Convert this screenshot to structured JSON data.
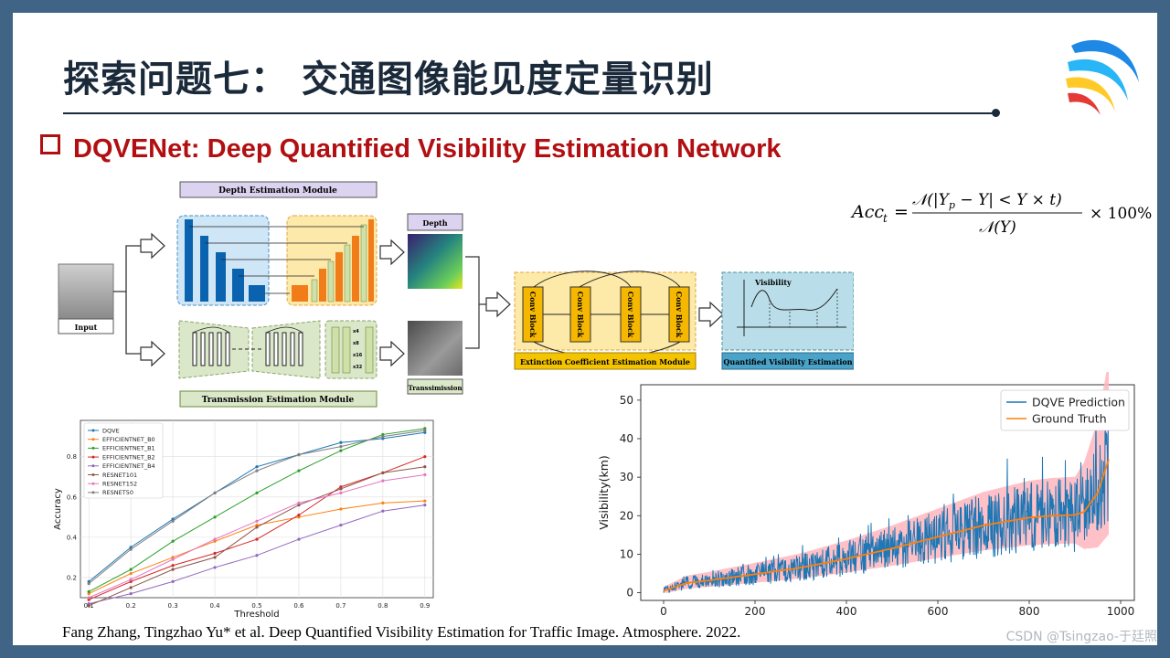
{
  "slide": {
    "title": "探索问题七：  交通图像能见度定量识别",
    "subtitle": "DQVENet: Deep Quantified Visibility Estimation Network",
    "citation": "Fang Zhang,  Tingzhao  Yu* et al. Deep Quantified Visibility Estimation for Traffic Image. Atmosphere.  2022.",
    "watermark": "CSDN @Tsingzao-于廷照"
  },
  "formula": {
    "lhs": "Acc",
    "lhs_sub": "t",
    "numerator": "𝒩(|Y",
    "numerator_sub": "p",
    "numerator_rest": " − Y| < Y × t)",
    "denominator": "𝒩(Y)",
    "suffix": "× 100%"
  },
  "diagram": {
    "depth_module": "Depth Estimation Module",
    "transmission_module": "Transmission Estimation Module",
    "extinction_module": "Extinction Coefficient Estimation Module",
    "quantified_module": "Quantified Visibility Estimation",
    "input_label": "Input",
    "depth_label": "Depth",
    "transmission_label": "Transsimission",
    "conv_block": "Conv Block",
    "visibility_label": "Visibility",
    "scale_labels": [
      "x4",
      "x8",
      "x16",
      "x32"
    ]
  },
  "colors": {
    "title": "#1b2a3a",
    "subtitle": "#b20f12",
    "frame": "#3f6485",
    "dqve_line": "#1f77b4",
    "truth_line": "#ff7f0e",
    "band": "#ffb6bd"
  },
  "chart_data": [
    {
      "type": "line",
      "xlabel": "Threshold",
      "ylabel": "Accuracy",
      "x": [
        0.1,
        0.2,
        0.3,
        0.4,
        0.5,
        0.6,
        0.7,
        0.8,
        0.9
      ],
      "xlim": [
        0.08,
        0.92
      ],
      "ylim": [
        0.1,
        0.98
      ],
      "x_ticks": [
        "0.1",
        "0.2",
        "0.3",
        "0.4",
        "0.5",
        "0.6",
        "0.7",
        "0.8",
        "0.9"
      ],
      "y_ticks": [
        "0.2",
        "0.4",
        "0.6",
        "0.8"
      ],
      "grid": true,
      "legend": "top-left",
      "series": [
        {
          "name": "DQVE",
          "color": "#1f77b4",
          "values": [
            0.18,
            0.35,
            0.49,
            0.62,
            0.75,
            0.81,
            0.87,
            0.89,
            0.92
          ]
        },
        {
          "name": "EFFICIENTNET_B0",
          "color": "#ff7f0e",
          "values": [
            0.12,
            0.22,
            0.3,
            0.38,
            0.46,
            0.5,
            0.54,
            0.57,
            0.58
          ]
        },
        {
          "name": "EFFICIENTNET_B1",
          "color": "#2ca02c",
          "values": [
            0.13,
            0.24,
            0.38,
            0.5,
            0.62,
            0.73,
            0.83,
            0.91,
            0.94
          ]
        },
        {
          "name": "EFFICIENTNET_B2",
          "color": "#d62728",
          "values": [
            0.09,
            0.18,
            0.26,
            0.32,
            0.39,
            0.51,
            0.65,
            0.72,
            0.8
          ]
        },
        {
          "name": "EFFICIENTNET_B4",
          "color": "#9467bd",
          "values": [
            0.07,
            0.12,
            0.18,
            0.25,
            0.31,
            0.39,
            0.46,
            0.53,
            0.56
          ]
        },
        {
          "name": "RESNET101",
          "color": "#8c564b",
          "values": [
            0.06,
            0.15,
            0.24,
            0.3,
            0.45,
            0.56,
            0.64,
            0.72,
            0.75
          ]
        },
        {
          "name": "RESNET152",
          "color": "#e377c2",
          "values": [
            0.1,
            0.19,
            0.29,
            0.39,
            0.48,
            0.57,
            0.62,
            0.68,
            0.71
          ]
        },
        {
          "name": "RESNET50",
          "color": "#7f7f7f",
          "values": [
            0.17,
            0.34,
            0.48,
            0.62,
            0.73,
            0.81,
            0.85,
            0.9,
            0.93
          ]
        }
      ]
    },
    {
      "type": "line",
      "xlabel": "Index of testing images",
      "ylabel": "Visibility(km)",
      "xlim": [
        -50,
        1030
      ],
      "ylim": [
        -2,
        54
      ],
      "x_ticks": [
        "0",
        "200",
        "400",
        "600",
        "800",
        "1000"
      ],
      "y_ticks": [
        "0",
        "10",
        "20",
        "30",
        "40",
        "50"
      ],
      "legend": "top-right",
      "n_points": 975,
      "series": [
        {
          "name": "DQVE Prediction",
          "color": "#1f77b4"
        },
        {
          "name": "Ground Truth",
          "color": "#ff7f0e",
          "profile_x": [
            0,
            50,
            100,
            200,
            300,
            400,
            500,
            600,
            700,
            800,
            850,
            900,
            920,
            950,
            975
          ],
          "profile_y": [
            0.5,
            2.5,
            3.2,
            4.8,
            6.5,
            8.8,
            11.5,
            14.5,
            17.5,
            19.5,
            20.0,
            20.2,
            21.0,
            26.0,
            35.0
          ]
        }
      ]
    }
  ]
}
